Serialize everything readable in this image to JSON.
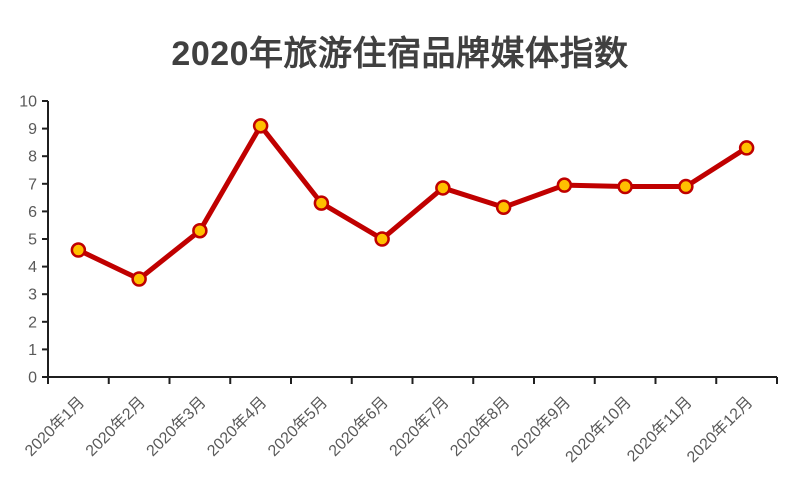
{
  "chart_data": {
    "type": "line",
    "title": "2020年旅游住宿品牌媒体指数",
    "categories": [
      "2020年1月",
      "2020年2月",
      "2020年3月",
      "2020年4月",
      "2020年5月",
      "2020年6月",
      "2020年7月",
      "2020年8月",
      "2020年9月",
      "2020年10月",
      "2020年11月",
      "2020年12月"
    ],
    "values": [
      4.6,
      3.55,
      5.3,
      9.1,
      6.3,
      5.0,
      6.85,
      6.15,
      6.95,
      6.9,
      6.9,
      8.3
    ],
    "xlabel": "",
    "ylabel": "",
    "ylim": [
      0,
      10
    ],
    "ytick_step": 1,
    "yticks": [
      "0",
      "1",
      "2",
      "3",
      "4",
      "5",
      "6",
      "7",
      "8",
      "9",
      "10"
    ],
    "grid": false,
    "legend": "none",
    "x_label_rotation": -45,
    "colors": {
      "line": "#C00000",
      "marker_fill": "#FFC000",
      "marker_stroke": "#C00000",
      "axis": "#1F1F1F",
      "tick_label": "#595959",
      "title": "#404040",
      "background": "#FFFFFF"
    }
  }
}
